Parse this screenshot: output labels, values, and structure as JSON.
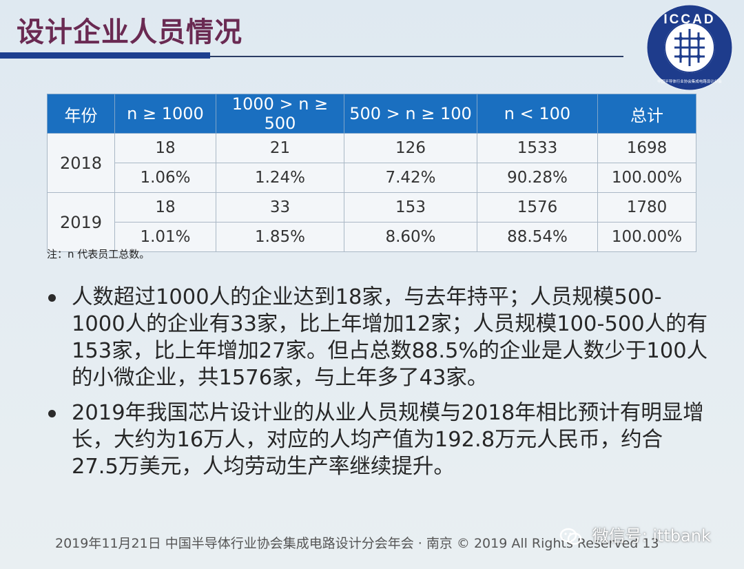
{
  "title": "设计企业人员情况",
  "logo": {
    "text": "ICCAD",
    "ring_text": "中国半导体行业协会集成电路设计分会"
  },
  "table": {
    "headers": [
      "年份",
      "n ≥ 1000",
      "1000 > n ≥ 500",
      "500 > n ≥ 100",
      "n < 100",
      "总计"
    ],
    "rows": [
      {
        "year": "2018",
        "counts": [
          "18",
          "21",
          "126",
          "1533",
          "1698"
        ],
        "percents": [
          "1.06%",
          "1.24%",
          "7.42%",
          "90.28%",
          "100.00%"
        ]
      },
      {
        "year": "2019",
        "counts": [
          "18",
          "33",
          "153",
          "1576",
          "1780"
        ],
        "percents": [
          "1.01%",
          "1.85%",
          "8.60%",
          "88.54%",
          "100.00%"
        ]
      }
    ]
  },
  "note": "注：n 代表员工总数。",
  "bullets": [
    "人数超过1000人的企业达到18家，与去年持平；人员规模500-1000人的企业有33家，比上年增加12家；人员规模100-500人的有153家，比上年增加27家。但占总数88.5%的企业是人数少于100人的小微企业，共1576家，与上年多了43家。",
    "2019年我国芯片设计业的从业人员规模与2018年相比预计有明显增长，大约为16万人，对应的人均产值为192.8万元人民币，约合27.5万美元，人均劳动生产率继续提升。"
  ],
  "footer": "2019年11月21日 中国半导体行业协会集成电路设计分会年会 · 南京 © 2019 All Rights Reserved 13",
  "watermark": "微信号: ittbank",
  "colors": {
    "title": "#6a2a52",
    "header_bg": "#1a6fc0",
    "rule": "#1d3f8e",
    "logo_ring": "#1e3c8c"
  }
}
